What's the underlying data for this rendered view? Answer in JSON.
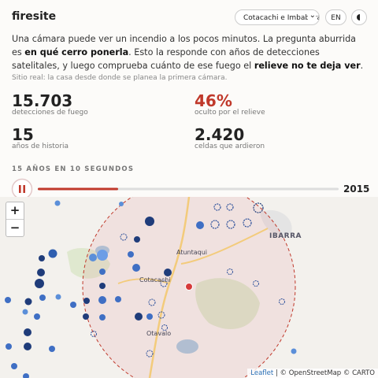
{
  "header": {
    "title": "firesite",
    "region": "Cotacachi e Imbabura",
    "language": "EN"
  },
  "intro": {
    "parts": [
      {
        "text": "Una cámara puede ver un incendio a los pocos minutos. La pregunta aburrida es ",
        "bold": false
      },
      {
        "text": "en qué cerro ponerla",
        "bold": true
      },
      {
        "text": ". Esto la responde con años de detecciones satelitales, y luego comprueba cuánto de ese fuego el ",
        "bold": false
      },
      {
        "text": "relieve no te deja ver",
        "bold": true
      },
      {
        "text": ".",
        "bold": false
      }
    ]
  },
  "note": "Sitio real: la casa desde donde se planea la primera cámara.",
  "stats": [
    {
      "value": "15.703",
      "label": "detecciones de fuego",
      "highlight": false
    },
    {
      "value": "46%",
      "label": "oculto por el relieve",
      "highlight": true
    },
    {
      "value": "15",
      "label": "años de historia",
      "highlight": false
    },
    {
      "value": "2.420",
      "label": "celdas que ardieron",
      "highlight": false
    }
  ],
  "timeline": {
    "title": "15 AÑOS EN 10 SEGUNDOS",
    "year": "2015"
  },
  "map": {
    "zoom_in": "+",
    "zoom_out": "−",
    "places": [
      "IBARRA",
      "Atuntaqui",
      "Cotacachi",
      "Otavalo"
    ],
    "attribution": {
      "link": "Leaflet",
      "rest": " | © OpenStreetMap © CARTO"
    }
  }
}
